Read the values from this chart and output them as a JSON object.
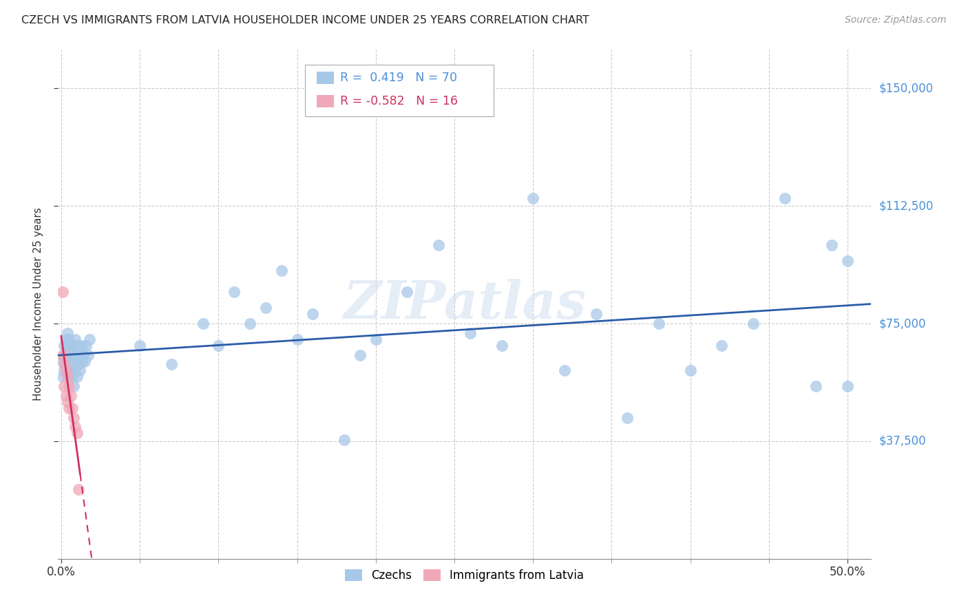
{
  "title": "CZECH VS IMMIGRANTS FROM LATVIA HOUSEHOLDER INCOME UNDER 25 YEARS CORRELATION CHART",
  "source": "Source: ZipAtlas.com",
  "ylabel": "Householder Income Under 25 years",
  "ytick_labels": [
    "$37,500",
    "$75,000",
    "$112,500",
    "$150,000"
  ],
  "ytick_vals": [
    37500,
    75000,
    112500,
    150000
  ],
  "ylim": [
    0,
    162500
  ],
  "xlim": [
    -0.002,
    0.515
  ],
  "czechs_color": "#a8c8e8",
  "latvia_color": "#f0a8b8",
  "trendline_czech_color": "#2a5ca8",
  "trendline_latvia_color": "#d03060",
  "R_czech": 0.419,
  "N_czech": 70,
  "R_latvia": -0.582,
  "N_latvia": 16,
  "legend_czech_label": "Czechs",
  "legend_latvia_label": "Immigrants from Latvia",
  "watermark": "ZIPatlas",
  "czechs_x": [
    0.001,
    0.001,
    0.002,
    0.002,
    0.002,
    0.003,
    0.003,
    0.003,
    0.004,
    0.004,
    0.004,
    0.004,
    0.005,
    0.005,
    0.005,
    0.005,
    0.006,
    0.006,
    0.006,
    0.007,
    0.007,
    0.007,
    0.008,
    0.008,
    0.009,
    0.009,
    0.009,
    0.01,
    0.01,
    0.011,
    0.011,
    0.012,
    0.012,
    0.013,
    0.013,
    0.014,
    0.015,
    0.016,
    0.017,
    0.018,
    0.05,
    0.07,
    0.09,
    0.1,
    0.11,
    0.12,
    0.13,
    0.14,
    0.15,
    0.16,
    0.18,
    0.19,
    0.2,
    0.22,
    0.24,
    0.26,
    0.28,
    0.3,
    0.32,
    0.34,
    0.36,
    0.38,
    0.4,
    0.42,
    0.44,
    0.46,
    0.48,
    0.49,
    0.5,
    0.5
  ],
  "czechs_y": [
    63000,
    58000,
    60000,
    65000,
    68000,
    62000,
    66000,
    70000,
    60000,
    63000,
    67000,
    72000,
    58000,
    62000,
    66000,
    70000,
    60000,
    65000,
    68000,
    58000,
    63000,
    68000,
    55000,
    62000,
    60000,
    65000,
    70000,
    58000,
    65000,
    62000,
    68000,
    60000,
    65000,
    63000,
    68000,
    65000,
    63000,
    68000,
    65000,
    70000,
    68000,
    62000,
    75000,
    68000,
    85000,
    75000,
    80000,
    92000,
    70000,
    78000,
    38000,
    65000,
    70000,
    85000,
    100000,
    72000,
    68000,
    115000,
    60000,
    78000,
    45000,
    75000,
    60000,
    68000,
    75000,
    115000,
    55000,
    100000,
    95000,
    55000
  ],
  "latvia_x": [
    0.001,
    0.001,
    0.002,
    0.002,
    0.003,
    0.003,
    0.004,
    0.004,
    0.005,
    0.005,
    0.006,
    0.007,
    0.008,
    0.009,
    0.01,
    0.011
  ],
  "latvia_y": [
    85000,
    65000,
    62000,
    55000,
    60000,
    52000,
    58000,
    50000,
    55000,
    48000,
    52000,
    48000,
    45000,
    42000,
    40000,
    22000
  ]
}
